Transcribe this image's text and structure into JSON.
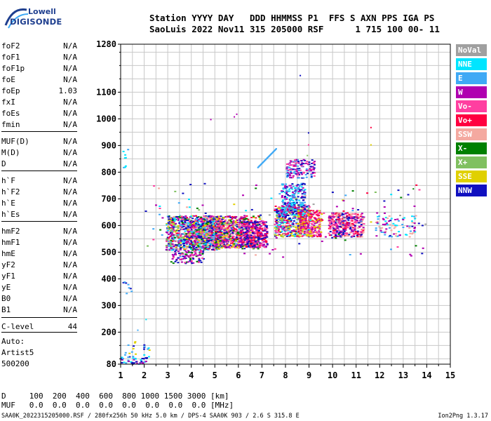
{
  "logo": {
    "line1": "Lowell",
    "line2": "DIGISONDE"
  },
  "header": {
    "line1": "Station YYYY DAY   DDD HHMMSS P1  FFS S AXN PPS IGA PS",
    "line2": "SaoLuis 2022 Nov11 315 205000 RSF      1 715 100 00- 11"
  },
  "params": [
    {
      "name": "foF2",
      "value": "N/A"
    },
    {
      "name": "foF1",
      "value": "N/A"
    },
    {
      "name": "foF1p",
      "value": "N/A"
    },
    {
      "name": "foE",
      "value": "N/A"
    },
    {
      "name": "foEp",
      "value": "1.03"
    },
    {
      "name": "fxI",
      "value": "N/A"
    },
    {
      "name": "foEs",
      "value": "N/A"
    },
    {
      "name": "fmin",
      "value": "N/A"
    },
    {
      "name": "MUF(D)",
      "value": "N/A"
    },
    {
      "name": "M(D)",
      "value": "N/A"
    },
    {
      "name": "D",
      "value": "N/A"
    },
    {
      "name": "h`F",
      "value": "N/A"
    },
    {
      "name": "h`F2",
      "value": "N/A"
    },
    {
      "name": "h`E",
      "value": "N/A"
    },
    {
      "name": "h`Es",
      "value": "N/A"
    },
    {
      "name": "hmF2",
      "value": "N/A"
    },
    {
      "name": "hmF1",
      "value": "N/A"
    },
    {
      "name": "hmE",
      "value": "N/A"
    },
    {
      "name": "yF2",
      "value": "N/A"
    },
    {
      "name": "yF1",
      "value": "N/A"
    },
    {
      "name": "yE",
      "value": "N/A"
    },
    {
      "name": "B0",
      "value": "N/A"
    },
    {
      "name": "B1",
      "value": "N/A"
    },
    {
      "name": "C-level",
      "value": "44"
    }
  ],
  "auto": {
    "line1": "Auto:",
    "line2": "Artist5",
    "line3": "500200"
  },
  "axes": {
    "y_ticks": [
      "1280",
      "1100",
      "1000",
      "900",
      "800",
      "700",
      "600",
      "500",
      "400",
      "300",
      "200",
      "80"
    ],
    "x_ticks": [
      "1",
      "2",
      "3",
      "4",
      "5",
      "6",
      "7",
      "8",
      "9",
      "10",
      "11",
      "12",
      "13",
      "14",
      "15"
    ]
  },
  "legend": [
    {
      "label": "NoVal",
      "color": "#a0a0a0"
    },
    {
      "label": "NNE",
      "color": "#00e5ff"
    },
    {
      "label": "E",
      "color": "#3fa9f5"
    },
    {
      "label": "W",
      "color": "#b000b0"
    },
    {
      "label": "Vo-",
      "color": "#ff3fa0"
    },
    {
      "label": "Vo+",
      "color": "#ff0040"
    },
    {
      "label": "SSW",
      "color": "#f4a9a0"
    },
    {
      "label": "X-",
      "color": "#008000"
    },
    {
      "label": "X+",
      "color": "#80c060"
    },
    {
      "label": "SSE",
      "color": "#e0d000"
    },
    {
      "label": "NNW",
      "color": "#1010c0"
    }
  ],
  "bottom": {
    "line1": "D     100  200  400  600  800 1000 1500 3000 [km]",
    "line2": "MUF   0.0  0.0  0.0  0.0  0.0  0.0  0.0  0.0 [MHz]"
  },
  "footer": "SAA0K_2022315205000.RSF / 280fx256h 50 kHz 5.0 km / DPS-4 SAA0K 903 / 2.6 S 315.8 E",
  "version": "Ion2Png 1.3.17"
}
